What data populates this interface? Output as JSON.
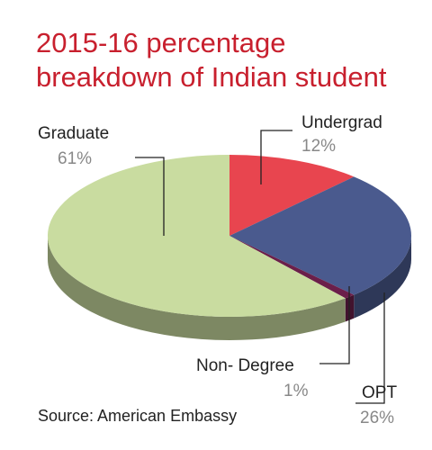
{
  "chart_data": {
    "type": "pie",
    "title": "2015-16 percentage",
    "subtitle": "breakdown of Indian student",
    "categories": [
      "Undergrad",
      "OPT",
      "Non- Degree",
      "Graduate"
    ],
    "values": [
      12,
      26,
      1,
      61
    ],
    "value_labels": [
      "12%",
      "26%",
      "1%",
      "61%"
    ],
    "colors": [
      "#e8454f",
      "#4a5a8e",
      "#6b1f4a",
      "#c9dca0"
    ],
    "source": "Source: American Embassy"
  }
}
